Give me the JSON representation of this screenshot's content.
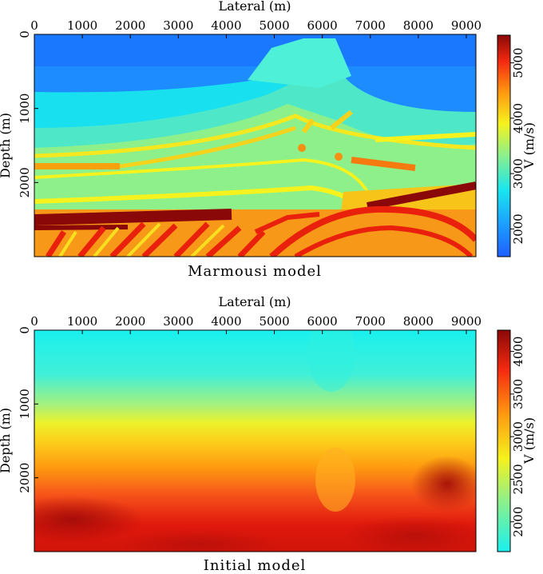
{
  "colormap": [
    "#1e5fff",
    "#1c9cff",
    "#19e6ef",
    "#8ef08a",
    "#f5f21e",
    "#ff9a10",
    "#f52a10",
    "#8a0808"
  ],
  "chart_data": [
    {
      "type": "heatmap",
      "title": "Marmousi model",
      "xlabel": "Lateral (m)",
      "ylabel": "Depth (m)",
      "xlim": [
        0,
        9200
      ],
      "ylim": [
        0,
        3000
      ],
      "xticks": [
        "0",
        "1000",
        "2000",
        "3000",
        "4000",
        "5000",
        "6000",
        "7000",
        "8000",
        "9000"
      ],
      "yticks": [
        "0",
        "1000",
        "2000"
      ],
      "colorbar": {
        "label": "V (m/s)",
        "range": [
          1500,
          5500
        ],
        "ticks": [
          "2000",
          "3000",
          "4000",
          "5000"
        ]
      }
    },
    {
      "type": "heatmap",
      "title": "Initial model",
      "xlabel": "Lateral (m)",
      "ylabel": "Depth (m)",
      "xlim": [
        0,
        9200
      ],
      "ylim": [
        0,
        3000
      ],
      "xticks": [
        "0",
        "1000",
        "2000",
        "3000",
        "4000",
        "5000",
        "6000",
        "7000",
        "8000",
        "9000"
      ],
      "yticks": [
        "0",
        "1000",
        "2000"
      ],
      "colorbar": {
        "label": "V (m/s)",
        "range": [
          1650,
          4250
        ],
        "ticks": [
          "2000",
          "2500",
          "3000",
          "3500",
          "4000"
        ]
      }
    }
  ]
}
